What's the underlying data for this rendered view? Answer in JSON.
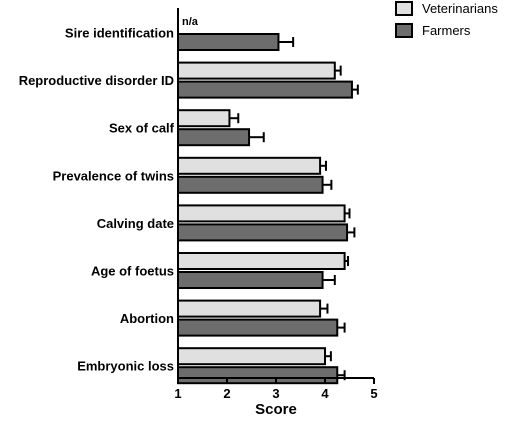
{
  "chart_data": {
    "type": "bar",
    "orientation": "horizontal",
    "categories": [
      "Sire identification",
      "Reproductive disorder ID",
      "Sex of calf",
      "Prevalence of twins",
      "Calving date",
      "Age of foetus",
      "Abortion",
      "Embryonic loss"
    ],
    "series": [
      {
        "name": "Veterinarians",
        "color": "#e0e0e0",
        "values": [
          null,
          4.2,
          2.05,
          3.9,
          4.4,
          4.4,
          3.9,
          4.0
        ],
        "errors": [
          null,
          0.12,
          0.18,
          0.12,
          0.1,
          0.07,
          0.15,
          0.12
        ]
      },
      {
        "name": "Farmers",
        "color": "#6d6d6d",
        "values": [
          3.05,
          4.55,
          2.45,
          3.95,
          4.45,
          3.95,
          4.25,
          4.25
        ],
        "errors": [
          0.3,
          0.12,
          0.3,
          0.18,
          0.15,
          0.25,
          0.15,
          0.15
        ]
      }
    ],
    "xlabel": "Score",
    "xlim": [
      1,
      5
    ],
    "xticks": [
      "1",
      "2",
      "3",
      "4",
      "5"
    ],
    "annotations": [
      {
        "category": "Sire identification",
        "series": "Veterinarians",
        "text": "n/a"
      }
    ],
    "legend_position": "top-right",
    "grid": false
  }
}
